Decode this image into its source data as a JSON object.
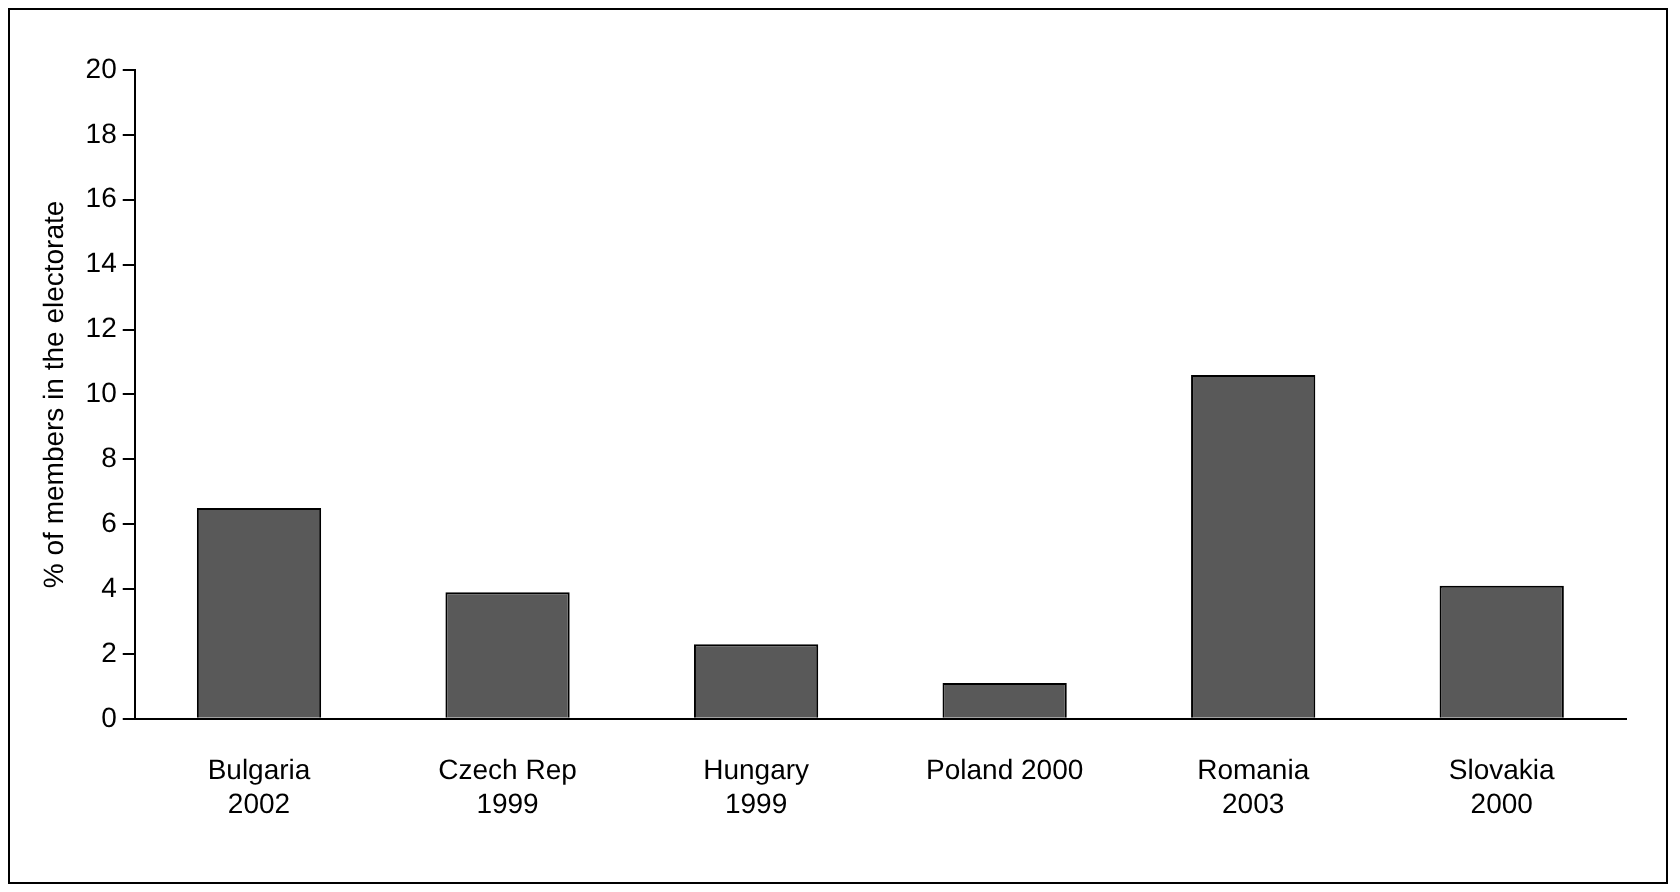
{
  "chart_data": {
    "type": "bar",
    "ylabel": "% of members in the electorate",
    "categories": [
      "Bulgaria 2002",
      "Czech Rep 1999",
      "Hungary 1999",
      "Poland 2000",
      "Romania 2003",
      "Slovakia 2000"
    ],
    "values": [
      6.5,
      3.9,
      2.3,
      1.1,
      10.6,
      4.1
    ],
    "color": "#595959",
    "ylim": [
      0,
      20
    ],
    "yticks": [
      0,
      2,
      4,
      6,
      8,
      10,
      12,
      14,
      16,
      18,
      20
    ],
    "grid": false,
    "legend": false
  }
}
